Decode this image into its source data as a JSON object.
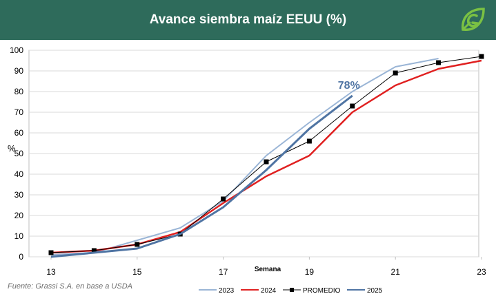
{
  "header": {
    "title": "Avance siembra maíz EEUU (%)",
    "logo": "grassi-leaf-icon"
  },
  "source": "Fuente: Grassi S.A. en base a USDA",
  "colors": {
    "header_bg": "#2e6b5b",
    "s2023": "#9ab5d6",
    "s2024": "#e02020",
    "promedio": "#000000",
    "s2025": "#4f74a3"
  },
  "chart_data": {
    "type": "line",
    "title": "Avance siembra maíz EEUU (%)",
    "xlabel": "Semana",
    "ylabel": "%",
    "xlim": [
      13,
      23
    ],
    "ylim": [
      0,
      100
    ],
    "xticks": [
      "13",
      "15",
      "17",
      "19",
      "21",
      "23"
    ],
    "yticks": [
      "0",
      "10",
      "20",
      "30",
      "40",
      "50",
      "60",
      "70",
      "80",
      "90",
      "100"
    ],
    "grid": true,
    "legend_position": "bottom",
    "annotation": {
      "text": "78%",
      "x": 20,
      "y": 78
    },
    "series": [
      {
        "name": "2023",
        "x": [
          13,
          14,
          15,
          16,
          17,
          18,
          19,
          20,
          21,
          22
        ],
        "values": [
          1,
          2,
          8,
          14,
          27,
          49,
          65,
          80,
          92,
          96
        ]
      },
      {
        "name": "2024",
        "x": [
          13,
          14,
          15,
          16,
          17,
          18,
          19,
          20,
          21,
          22,
          23
        ],
        "values": [
          2,
          3,
          6,
          12,
          26,
          39,
          49,
          70,
          83,
          91,
          95
        ]
      },
      {
        "name": "PROMEDIO",
        "x": [
          13,
          14,
          15,
          16,
          17,
          18,
          19,
          20,
          21,
          22,
          23
        ],
        "values": [
          2,
          3,
          6,
          11,
          28,
          46,
          56,
          73,
          89,
          94,
          97
        ]
      },
      {
        "name": "2025",
        "x": [
          13,
          14,
          15,
          16,
          17,
          18,
          19,
          20
        ],
        "values": [
          0,
          2,
          4,
          11,
          24,
          42,
          62,
          78
        ]
      }
    ]
  }
}
